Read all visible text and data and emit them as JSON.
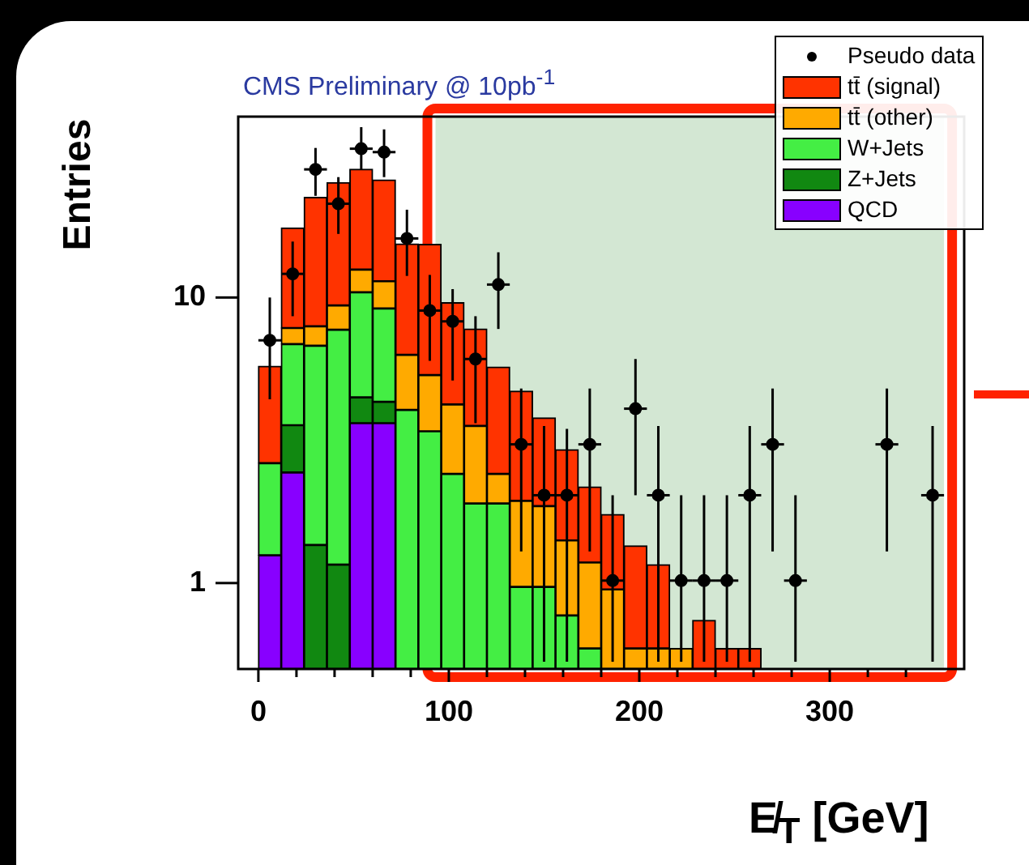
{
  "chart_data": {
    "type": "bar",
    "title": "CMS Preliminary @ 10pb$^{-1}$",
    "xlabel": "E̸$_{T}$ [GeV]",
    "ylabel": "Entries",
    "x": [
      6,
      18,
      30,
      42,
      54,
      66,
      78,
      90,
      102,
      114,
      126,
      138,
      150,
      162,
      174,
      186,
      198,
      210,
      222,
      234,
      246,
      258
    ],
    "stacked": true,
    "log": "y",
    "legend": "top right",
    "xlim": [
      0,
      360
    ],
    "xticks": [
      0,
      {
        "value": 20,
        "label": null
      },
      {
        "value": 40,
        "label": null
      },
      {
        "value": 60,
        "label": null
      },
      {
        "value": 80,
        "label": null
      },
      100,
      {
        "value": 120,
        "label": null
      },
      {
        "value": 140,
        "label": null
      },
      {
        "value": 160,
        "label": null
      },
      {
        "value": 180,
        "label": null
      },
      200,
      {
        "value": 220,
        "label": null
      },
      {
        "value": 240,
        "label": null
      },
      {
        "value": 260,
        "label": null
      },
      {
        "value": 280,
        "label": null
      },
      300,
      {
        "value": 320,
        "label": null
      },
      {
        "value": 340,
        "label": null
      }
    ],
    "ylim": [
      0.5,
      43
    ],
    "yticks": [
      1,
      10
    ],
    "series": [
      {
        "name": "QCD",
        "color": "#8800ff",
        "values": [
          1.25,
          2.44,
          null,
          null,
          3.63,
          3.63,
          null,
          null,
          null,
          null,
          null,
          null,
          null,
          null,
          null,
          null,
          null,
          null,
          null,
          null,
          null,
          null
        ]
      },
      {
        "name": "Z+Jets",
        "color": "#118811",
        "values": [
          null,
          1.13,
          1.36,
          1.16,
          0.84,
          0.68,
          null,
          null,
          null,
          null,
          null,
          null,
          null,
          null,
          null,
          null,
          null,
          null,
          null,
          null,
          null,
          null
        ]
      },
      {
        "name": "W+Jets",
        "color": "#44ee44",
        "values": [
          1.38,
          3.3,
          5.42,
          6.55,
          5.96,
          4.84,
          4.04,
          3.4,
          2.41,
          1.9,
          1.9,
          0.97,
          0.97,
          0.77,
          0.59,
          null,
          null,
          null,
          null,
          null,
          null,
          null
        ]
      },
      {
        "name": "tt̄ (other)",
        "color": "#ffaa00",
        "values": [
          null,
          0.95,
          1.15,
          1.67,
          2.1,
          2.25,
          2.26,
          1.95,
          1.81,
          1.65,
          0.51,
          0.97,
          0.89,
          0.64,
          0.59,
          0.95,
          0.59,
          0.59,
          0.59,
          null,
          null,
          null
        ]
      },
      {
        "name": "tt̄ (signal)",
        "color": "#ff3300",
        "values": [
          3.12,
          9.7,
          14.5,
          15.9,
          15.6,
          14.4,
          9.1,
          10.0,
          5.38,
          4.21,
          3.3,
          2.76,
          1.93,
          1.52,
          0.99,
          0.79,
          0.76,
          0.57,
          null,
          0.74,
          0.59,
          0.59
        ]
      },
      {
        "name": "Pseudo data",
        "type": "scatter",
        "color": "#000000",
        "marker": "circle",
        "x": [
          6,
          18,
          30,
          42,
          54,
          66,
          78,
          90,
          102,
          114,
          126,
          138,
          150,
          162,
          174,
          186,
          198,
          210,
          222,
          234,
          246,
          258,
          270,
          282,
          294,
          306,
          318,
          330,
          342,
          354
        ],
        "values": [
          7.08,
          12.1,
          28.1,
          21.3,
          33.2,
          32.3,
          16.1,
          9.0,
          8.25,
          6.09,
          11.1,
          3.06,
          2.03,
          2.03,
          3.06,
          1.02,
          4.08,
          2.03,
          1.02,
          1.02,
          1.02,
          2.03,
          3.06,
          1.02,
          null,
          null,
          null,
          3.06,
          null,
          2.03
        ],
        "errors": [
          [
            4.4,
            10
          ],
          [
            8.6,
            15.7
          ],
          [
            22.7,
            33.4
          ],
          [
            16.7,
            26.4
          ],
          [
            28.1,
            39.5
          ],
          [
            26.4,
            38.8
          ],
          [
            11.9,
            20.3
          ],
          [
            6.0,
            12.0
          ],
          [
            5.12,
            10.7
          ],
          [
            3.63,
            8.6
          ],
          [
            7.76,
            14.4
          ],
          [
            1.29,
            4.8
          ],
          [
            0.53,
            3.55
          ],
          [
            0.53,
            3.47
          ],
          [
            1.29,
            4.8
          ],
          [
            0.53,
            2.03
          ],
          [
            2.03,
            6.09
          ],
          [
            0.53,
            3.55
          ],
          [
            0.53,
            2.03
          ],
          [
            0.53,
            2.03
          ],
          [
            0.53,
            2.03
          ],
          [
            0.53,
            3.55
          ],
          [
            1.29,
            4.8
          ],
          [
            0.53,
            2.03
          ],
          null,
          null,
          null,
          [
            1.29,
            4.8
          ],
          null,
          [
            0.53,
            3.55
          ]
        ],
        "xerrors": [
          6,
          6,
          6,
          6,
          6,
          6,
          6,
          6,
          6,
          6,
          6,
          6,
          6,
          6,
          6,
          6,
          6,
          6,
          6,
          6,
          6,
          6,
          6,
          6,
          null,
          null,
          null,
          6,
          null,
          6
        ]
      }
    ],
    "bands": [
      {
        "axis": "x",
        "from": 93,
        "to": 360,
        "color": "#d3e7d3"
      }
    ]
  }
}
